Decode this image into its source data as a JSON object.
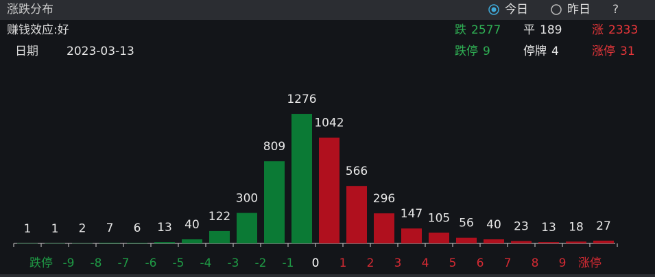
{
  "header": {
    "title": "涨跌分布",
    "options": [
      {
        "label": "今日",
        "selected": true
      },
      {
        "label": "昨日",
        "selected": false
      }
    ],
    "help": "?"
  },
  "info": {
    "effect": "赚钱效应:好",
    "date_label": "日期",
    "date": "2023-03-13"
  },
  "stats": [
    [
      {
        "label": "跌",
        "value": 2577,
        "color": "#2fb054"
      },
      {
        "label": "平",
        "value": 189,
        "color": "#e6e6e6"
      },
      {
        "label": "涨",
        "value": 2333,
        "color": "#e8363a"
      }
    ],
    [
      {
        "label": "跌停",
        "value": 9,
        "color": "#2fb054"
      },
      {
        "label": "停牌",
        "value": 4,
        "color": "#e6e6e6"
      },
      {
        "label": "涨停",
        "value": 31,
        "color": "#e8363a"
      }
    ]
  ],
  "chart_data": {
    "type": "bar",
    "values": [
      1,
      1,
      2,
      7,
      6,
      13,
      40,
      122,
      300,
      809,
      1276,
      1042,
      566,
      296,
      147,
      105,
      56,
      40,
      23,
      13,
      18,
      27
    ],
    "colors": [
      "#0b7a35",
      "#0b7a35",
      "#0b7a35",
      "#0b7a35",
      "#0b7a35",
      "#0b7a35",
      "#0b7a35",
      "#0b7a35",
      "#0b7a35",
      "#0b7a35",
      "#0b7a35",
      "#b0101e",
      "#b0101e",
      "#b0101e",
      "#b0101e",
      "#b0101e",
      "#b0101e",
      "#b0101e",
      "#b0101e",
      "#b0101e",
      "#b0101e",
      "#b0101e"
    ],
    "bin_labels": [
      "跌停",
      "-9",
      "-8",
      "-7",
      "-6",
      "-5",
      "-4",
      "-3",
      "-2",
      "-1",
      "0",
      "1",
      "2",
      "3",
      "4",
      "5",
      "6",
      "7",
      "8",
      "9",
      "涨停"
    ],
    "bin_label_colors": [
      "#1f9a45",
      "#1f9a45",
      "#1f9a45",
      "#1f9a45",
      "#1f9a45",
      "#1f9a45",
      "#1f9a45",
      "#1f9a45",
      "#1f9a45",
      "#1f9a45",
      "#ffffff",
      "#d42a33",
      "#d42a33",
      "#d42a33",
      "#d42a33",
      "#d42a33",
      "#d42a33",
      "#d42a33",
      "#d42a33",
      "#d42a33",
      "#d42a33"
    ],
    "ylim": [
      0,
      1300
    ]
  }
}
